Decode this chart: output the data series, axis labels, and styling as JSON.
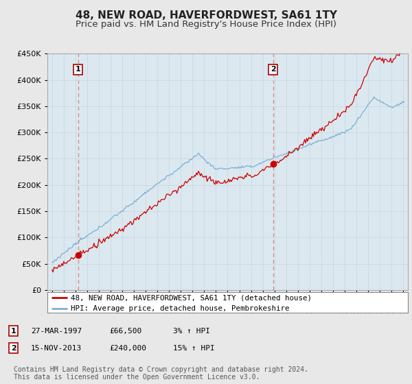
{
  "title": "48, NEW ROAD, HAVERFORDWEST, SA61 1TY",
  "subtitle": "Price paid vs. HM Land Registry's House Price Index (HPI)",
  "ylim": [
    0,
    450000
  ],
  "yticks": [
    0,
    50000,
    100000,
    150000,
    200000,
    250000,
    300000,
    350000,
    400000,
    450000
  ],
  "sale1_date": "27-MAR-1997",
  "sale1_price": 66500,
  "sale1_hpi": "3% ↑ HPI",
  "sale1_label": "1",
  "sale1_x": 1997.23,
  "sale2_date": "15-NOV-2013",
  "sale2_price": 240000,
  "sale2_hpi": "15% ↑ HPI",
  "sale2_label": "2",
  "sale2_x": 2013.88,
  "line_color_red": "#cc0000",
  "line_color_blue": "#7ab0d4",
  "vline_color": "#dd8888",
  "background_color": "#e8e8e8",
  "plot_bg_color": "#dce8f0",
  "legend_label_red": "48, NEW ROAD, HAVERFORDWEST, SA61 1TY (detached house)",
  "legend_label_blue": "HPI: Average price, detached house, Pembrokeshire",
  "footnote": "Contains HM Land Registry data © Crown copyright and database right 2024.\nThis data is licensed under the Open Government Licence v3.0.",
  "title_fontsize": 11,
  "subtitle_fontsize": 9.5,
  "tick_fontsize": 8,
  "legend_fontsize": 8,
  "footnote_fontsize": 7
}
